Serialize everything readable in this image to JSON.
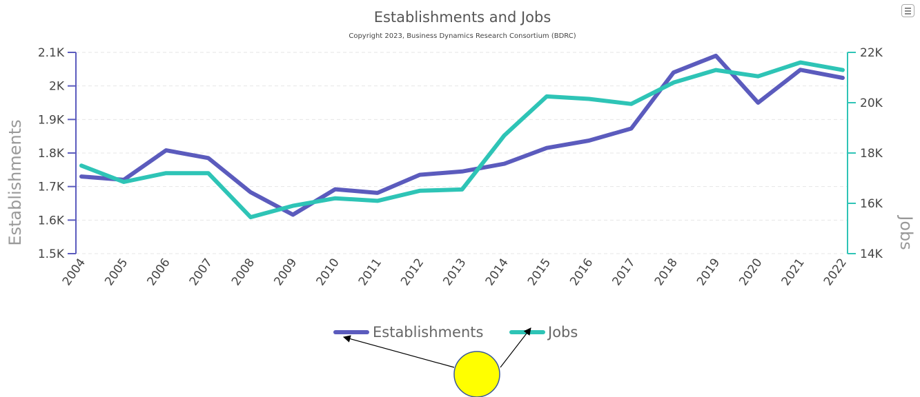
{
  "menu": {
    "icon": "hamburger-menu-icon"
  },
  "chart_data": {
    "type": "line",
    "title": "Establishments and Jobs",
    "subtitle": "Copyright 2023, Business Dynamics Research Consortium (BDRC)",
    "x": [
      "2004",
      "2005",
      "2006",
      "2007",
      "2008",
      "2009",
      "2010",
      "2011",
      "2012",
      "2013",
      "2014",
      "2015",
      "2016",
      "2017",
      "2018",
      "2019",
      "2020",
      "2021",
      "2022"
    ],
    "y_left": {
      "label": "Establishments",
      "range": [
        1500,
        2100
      ],
      "ticks": [
        1500,
        1600,
        1700,
        1800,
        1900,
        2000,
        2100
      ],
      "tick_labels": [
        "1.5K",
        "1.6K",
        "1.7K",
        "1.8K",
        "1.9K",
        "2K",
        "2.1K"
      ],
      "color": "#5b5bbd"
    },
    "y_right": {
      "label": "Jobs",
      "range": [
        14000,
        22000
      ],
      "ticks": [
        14000,
        16000,
        18000,
        20000,
        22000
      ],
      "tick_labels": [
        "14K",
        "16K",
        "18K",
        "20K",
        "22K"
      ],
      "color": "#2ec4b6"
    },
    "series": [
      {
        "name": "Establishments",
        "axis": "left",
        "color": "#5b5bbd",
        "values": [
          1730,
          1720,
          1808,
          1785,
          1683,
          1616,
          1692,
          1681,
          1735,
          1745,
          1768,
          1815,
          1837,
          1873,
          2040,
          2090,
          1950,
          2048,
          2024
        ]
      },
      {
        "name": "Jobs",
        "axis": "right",
        "color": "#2ec4b6",
        "values": [
          17500,
          16850,
          17200,
          17200,
          15450,
          15900,
          16200,
          16100,
          16500,
          16550,
          18700,
          20250,
          20150,
          19950,
          20800,
          21300,
          21050,
          21600,
          21300
        ]
      }
    ],
    "grid": true,
    "legend": {
      "position": "bottom-center"
    }
  }
}
